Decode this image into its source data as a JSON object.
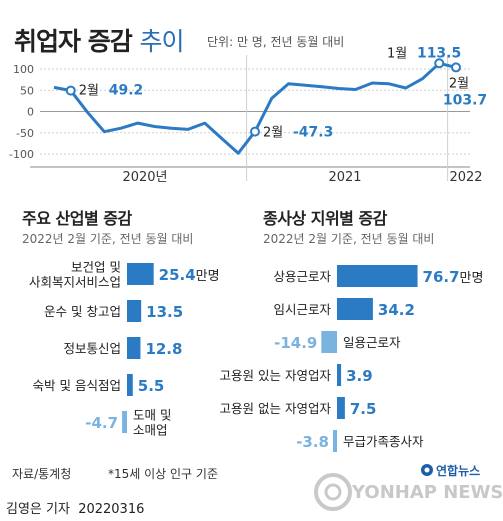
{
  "title_main": "취업자 증감",
  "title_sub": "추이",
  "unit_text": "단위: 만 명, 전년 동월 대비",
  "colors": {
    "accent": "#2b7bc4",
    "negative": "#7ab3e0",
    "line": "#2b7bc4",
    "grid": "#cfcfcf"
  },
  "chart_data": [
    {
      "type": "line",
      "title": "취업자 증감 추이",
      "unit": "만 명",
      "yticks": [
        100,
        50,
        0,
        -50,
        -100
      ],
      "ylim": [
        -110,
        120
      ],
      "x_labels": [
        "2020년",
        "2021",
        "2022"
      ],
      "values": [
        56.8,
        49.2,
        -1.9,
        -47.6,
        -39.2,
        -27.4,
        -35.2,
        -39.2,
        -42.1,
        -27.4,
        -62.8,
        -98.2,
        -47.3,
        31.4,
        65.2,
        61.9,
        58.2,
        54.2,
        51.8,
        67.1,
        65.2,
        55.3,
        77.2,
        113.5,
        103.7
      ],
      "annotations": [
        {
          "label": "2월",
          "value": "49.2"
        },
        {
          "label": "2월",
          "value": "-47.3"
        },
        {
          "label": "1월",
          "value": "113.5"
        },
        {
          "label": "2월",
          "value": "103.7"
        }
      ]
    },
    {
      "type": "bar",
      "title": "주요 산업별 증감",
      "subtitle": "2022년 2월 기준, 전년 동월 대비",
      "categories": [
        [
          "보건업 및",
          "사회복지서비스업"
        ],
        [
          "운수 및 창고업"
        ],
        [
          "정보통신업"
        ],
        [
          "숙박 및 음식점업"
        ],
        [
          "도매 및",
          "소매업"
        ]
      ],
      "values": [
        25.4,
        13.5,
        12.8,
        5.5,
        -4.7
      ],
      "value_labels": [
        "25.4",
        "13.5",
        "12.8",
        "5.5",
        "-4.7"
      ],
      "first_unit": "만명"
    },
    {
      "type": "bar",
      "title": "종사상 지위별 증감",
      "subtitle": "2022년 2월 기준, 전년 동월 대비",
      "categories": [
        [
          "상용근로자"
        ],
        [
          "임시근로자"
        ],
        [
          "일용근로자"
        ],
        [
          "고용원 있는 자영업자"
        ],
        [
          "고용원 없는 자영업자"
        ],
        [
          "무급가족종사자"
        ]
      ],
      "values": [
        76.7,
        34.2,
        -14.9,
        3.9,
        7.5,
        -3.8
      ],
      "value_labels": [
        "76.7",
        "34.2",
        "-14.9",
        "3.9",
        "7.5",
        "-3.8"
      ],
      "first_unit": "만명"
    }
  ],
  "footer": {
    "source": "자료/통계청",
    "note": "*15세 이상 인구 기준"
  },
  "author": {
    "name": "김영은 기자",
    "date": "20220316"
  },
  "logo": {
    "name": "연합뉴스",
    "main": "YONHAP NEWS"
  }
}
